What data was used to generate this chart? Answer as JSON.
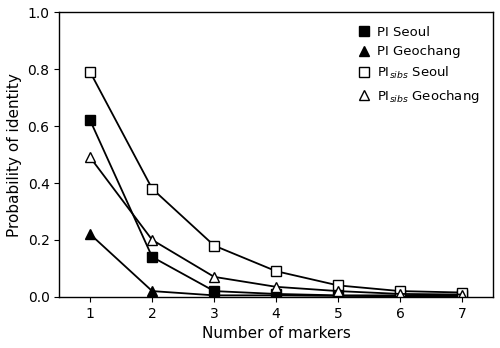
{
  "x": [
    1,
    2,
    3,
    4,
    5,
    6,
    7
  ],
  "PI_Seoul": [
    0.62,
    0.14,
    0.02,
    0.01,
    0.005,
    0.005,
    0.005
  ],
  "PI_Geochang": [
    0.22,
    0.02,
    0.005,
    0.005,
    0.003,
    0.002,
    0.002
  ],
  "PIsibs_Seoul": [
    0.79,
    0.38,
    0.18,
    0.09,
    0.04,
    0.02,
    0.015
  ],
  "PIsibs_Geochang": [
    0.49,
    0.2,
    0.07,
    0.035,
    0.02,
    0.01,
    0.008
  ],
  "xlabel": "Number of markers",
  "ylabel": "Probability of identity",
  "ylim": [
    0.0,
    1.0
  ],
  "legend_labels": [
    "PI Seoul",
    "PI Geochang",
    "PI$_{sibs}$ Seoul",
    "PI$_{sibs}$ Geochang"
  ],
  "line_color": "#000000",
  "figsize": [
    5.0,
    3.48
  ],
  "dpi": 100
}
